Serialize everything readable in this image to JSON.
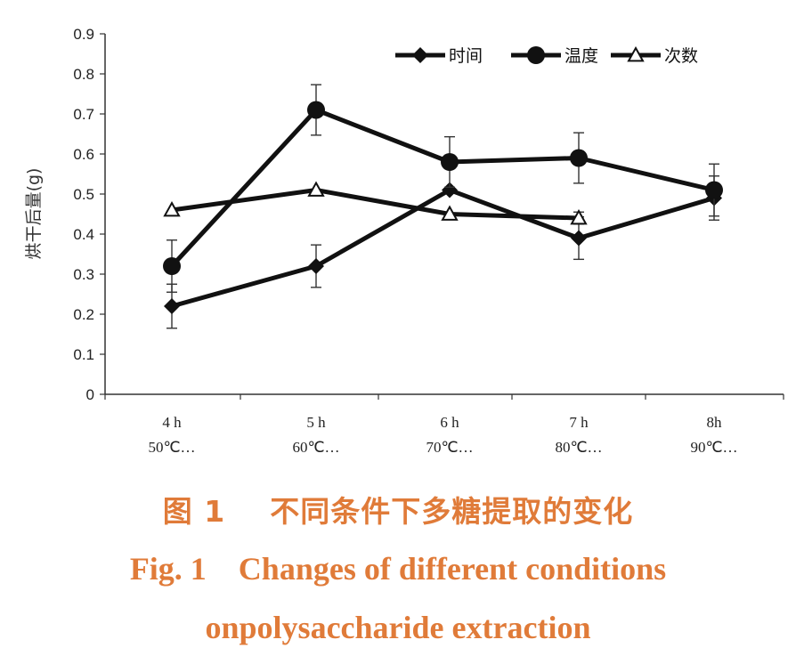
{
  "chart_data": {
    "type": "line",
    "title": "",
    "xlabel": "",
    "ylabel": "烘干后量(g)",
    "ylim": [
      0,
      0.9
    ],
    "yticks": [
      0,
      0.1,
      0.2,
      0.3,
      0.4,
      0.5,
      0.6,
      0.7,
      0.8,
      0.9
    ],
    "ytick_labels": [
      "0",
      "0.1",
      "0.2",
      "0.3",
      "0.4",
      "0.5",
      "0.6",
      "0.7",
      "0.8",
      "0.9"
    ],
    "categories": [
      {
        "line1": "4 h",
        "line2": "50℃…"
      },
      {
        "line1": "5 h",
        "line2": "60℃…"
      },
      {
        "line1": "6 h",
        "line2": "70℃…"
      },
      {
        "line1": "7 h",
        "line2": "80℃…"
      },
      {
        "line1": "8h",
        "line2": "90℃…"
      }
    ],
    "grid": false,
    "legend_position": "top-right",
    "series": [
      {
        "name": "时间",
        "marker": "diamond",
        "values": [
          0.22,
          0.32,
          0.51,
          0.39,
          0.49
        ],
        "errors": [
          0.055,
          0.053,
          null,
          0.053,
          0.055
        ]
      },
      {
        "name": "温度",
        "marker": "circle",
        "values": [
          0.32,
          0.71,
          0.58,
          0.59,
          0.51
        ],
        "errors": [
          0.065,
          0.063,
          0.063,
          0.063,
          0.065
        ]
      },
      {
        "name": "次数",
        "marker": "triangle-open",
        "values": [
          0.46,
          0.51,
          0.45,
          0.44,
          null
        ],
        "errors": [
          null,
          null,
          null,
          0.015,
          null
        ]
      }
    ],
    "line_color": "#111111"
  },
  "caption": {
    "cn": "图 1    不同条件下多糖提取的变化",
    "en_line1": "Fig. 1    Changes of different conditions",
    "en_line2": "onpolysaccharide extraction",
    "color": "#e07b39"
  }
}
